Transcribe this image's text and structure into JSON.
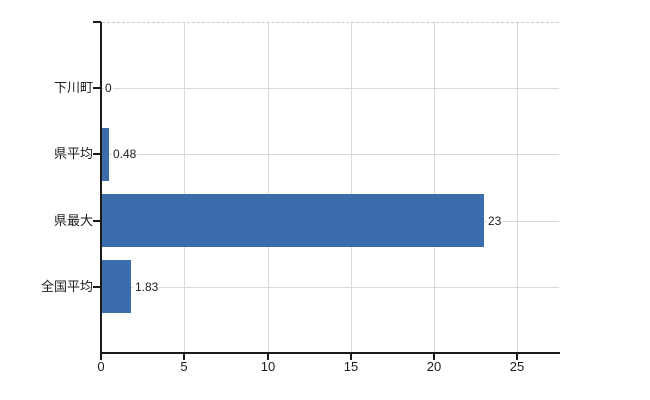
{
  "chart_data": {
    "type": "bar",
    "orientation": "horizontal",
    "title": "",
    "categories": [
      "下川町",
      "県平均",
      "県最大",
      "全国平均"
    ],
    "values": [
      0,
      0.48,
      23,
      1.83
    ],
    "value_labels": [
      "0",
      "0.48",
      "23",
      "1.83"
    ],
    "x_ticks": [
      0,
      5,
      10,
      15,
      20,
      25
    ],
    "x_tick_labels": [
      "0",
      "5",
      "10",
      "15",
      "20",
      "25"
    ],
    "xlim": [
      0,
      27.5
    ],
    "grid": true,
    "legend_position": "none",
    "colors": {
      "bar": "#3b6dac",
      "axis": "#1a1a1a",
      "gridline": "#d9d9d9",
      "top_border": "#c9c9c9",
      "text": "#1d1d1d"
    }
  }
}
